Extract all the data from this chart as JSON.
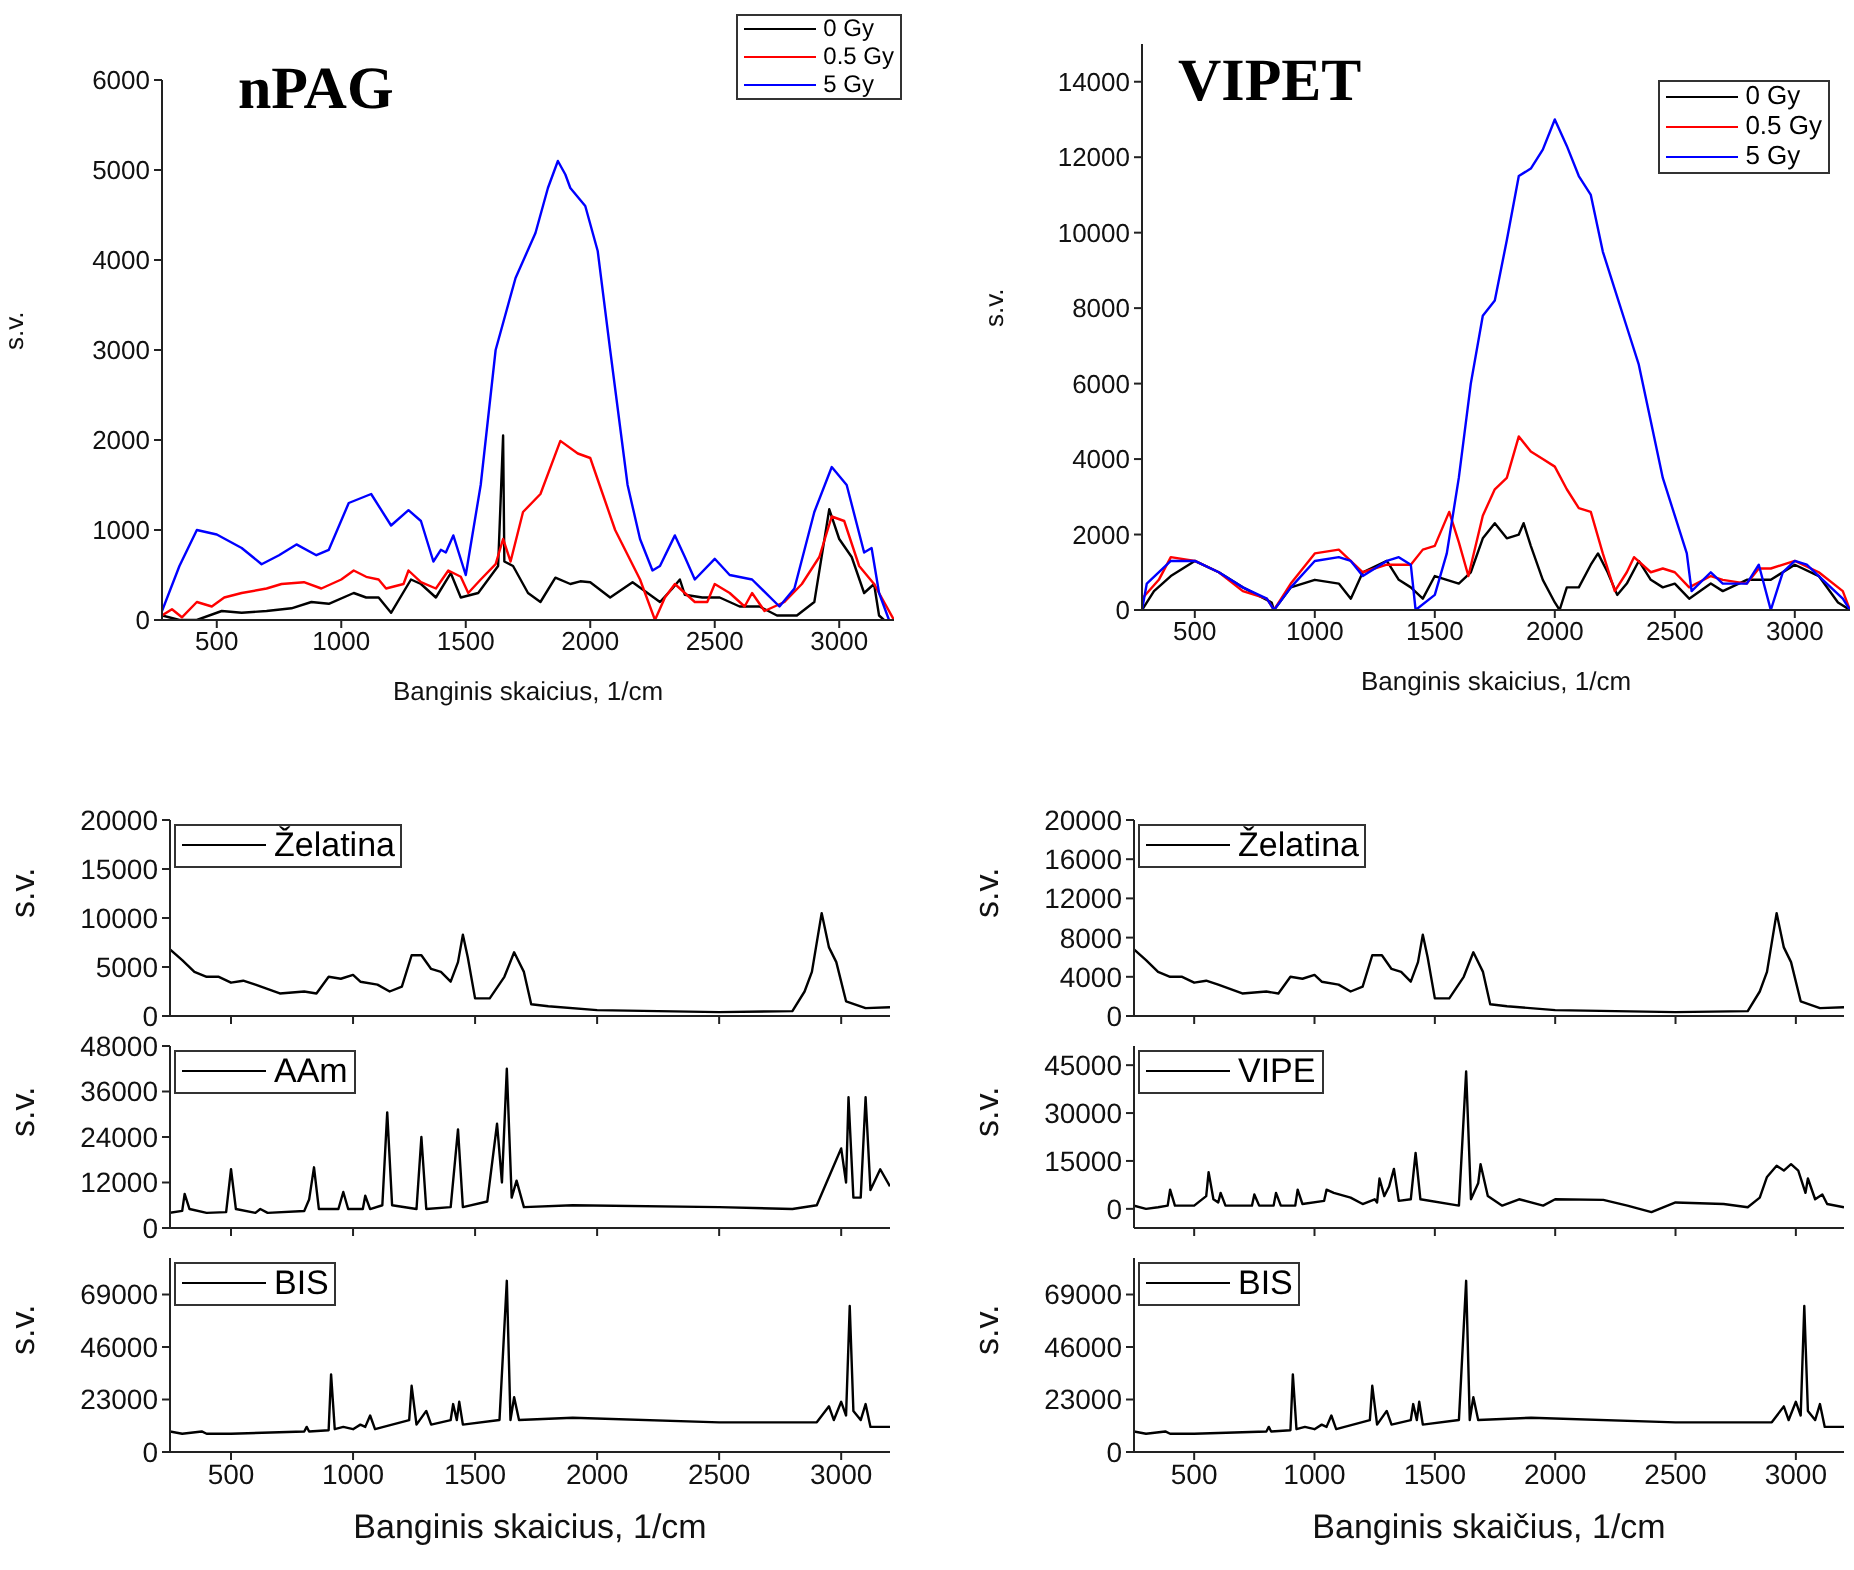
{
  "chart_data": [
    {
      "type": "line",
      "title": "nPAG",
      "xlabel": "Banginis skaicius, 1/cm",
      "ylabel": "s.v.",
      "xlim": [
        280,
        3220
      ],
      "xticks": [
        500,
        1000,
        1500,
        2000,
        2500,
        3000
      ],
      "ylim": [
        0,
        6000
      ],
      "yticks": [
        0,
        1000,
        2000,
        3000,
        4000,
        5000,
        6000
      ],
      "legend": "top right",
      "series": [
        {
          "name": "0 Gy",
          "color": "#000000",
          "x": [
            280,
            350,
            420,
            520,
            600,
            700,
            800,
            880,
            950,
            1050,
            1100,
            1150,
            1200,
            1280,
            1320,
            1380,
            1440,
            1480,
            1550,
            1630,
            1650,
            1655,
            1690,
            1750,
            1800,
            1860,
            1920,
            1960,
            2000,
            2080,
            2170,
            2230,
            2280,
            2330,
            2360,
            2380,
            2450,
            2520,
            2600,
            2680,
            2750,
            2830,
            2900,
            2960,
            3000,
            3050,
            3100,
            3140,
            3160,
            3180
          ],
          "values": [
            50,
            0,
            0,
            100,
            80,
            100,
            130,
            200,
            180,
            300,
            250,
            250,
            80,
            450,
            400,
            250,
            520,
            250,
            300,
            600,
            2050,
            650,
            600,
            300,
            200,
            470,
            400,
            430,
            420,
            250,
            420,
            300,
            200,
            350,
            450,
            280,
            250,
            250,
            150,
            150,
            50,
            50,
            200,
            1230,
            900,
            700,
            300,
            400,
            50,
            0
          ]
        },
        {
          "name": "0.5 Gy",
          "color": "#ff0000",
          "x": [
            280,
            320,
            360,
            420,
            480,
            530,
            600,
            700,
            760,
            850,
            920,
            1000,
            1050,
            1100,
            1150,
            1180,
            1250,
            1270,
            1320,
            1380,
            1430,
            1480,
            1510,
            1560,
            1620,
            1650,
            1680,
            1730,
            1800,
            1880,
            1950,
            2000,
            2050,
            2100,
            2200,
            2260,
            2300,
            2340,
            2380,
            2420,
            2470,
            2500,
            2560,
            2620,
            2650,
            2700,
            2780,
            2850,
            2920,
            2970,
            3020,
            3080,
            3140,
            3180,
            3220
          ],
          "values": [
            50,
            120,
            30,
            200,
            150,
            250,
            300,
            350,
            400,
            420,
            350,
            450,
            550,
            480,
            450,
            350,
            400,
            550,
            420,
            350,
            550,
            480,
            300,
            450,
            620,
            900,
            650,
            1200,
            1400,
            1990,
            1850,
            1800,
            1400,
            1000,
            450,
            0,
            250,
            400,
            300,
            200,
            200,
            400,
            300,
            150,
            300,
            100,
            200,
            400,
            700,
            1150,
            1100,
            600,
            400,
            200,
            0
          ]
        },
        {
          "name": "5 Gy",
          "color": "#0000ff",
          "x": [
            280,
            350,
            420,
            500,
            600,
            680,
            750,
            820,
            900,
            950,
            1030,
            1120,
            1200,
            1270,
            1320,
            1370,
            1400,
            1420,
            1450,
            1500,
            1560,
            1620,
            1700,
            1780,
            1830,
            1870,
            1900,
            1920,
            1980,
            2030,
            2080,
            2150,
            2200,
            2250,
            2280,
            2340,
            2380,
            2420,
            2500,
            2560,
            2650,
            2760,
            2820,
            2900,
            2970,
            3030,
            3100,
            3130,
            3160,
            3200
          ],
          "values": [
            100,
            600,
            1000,
            950,
            800,
            620,
            720,
            840,
            720,
            780,
            1300,
            1400,
            1050,
            1220,
            1100,
            650,
            780,
            750,
            940,
            500,
            1500,
            3000,
            3800,
            4300,
            4800,
            5100,
            4950,
            4800,
            4600,
            4100,
            3000,
            1500,
            900,
            550,
            600,
            940,
            700,
            450,
            680,
            500,
            450,
            150,
            350,
            1200,
            1700,
            1500,
            750,
            800,
            300,
            0
          ]
        }
      ]
    },
    {
      "type": "line",
      "title": "VIPET",
      "xlabel": "Banginis skaicius, 1/cm",
      "ylabel": "s.v.",
      "xlim": [
        280,
        3230
      ],
      "xticks": [
        500,
        1000,
        1500,
        2000,
        2500,
        3000
      ],
      "ylim": [
        0,
        15000
      ],
      "yticks": [
        0,
        2000,
        4000,
        6000,
        8000,
        10000,
        12000,
        14000
      ],
      "legend": "top right",
      "series": [
        {
          "name": "0 Gy",
          "color": "#000000",
          "x": [
            280,
            330,
            400,
            500,
            600,
            700,
            820,
            830,
            900,
            1000,
            1100,
            1150,
            1200,
            1300,
            1350,
            1400,
            1450,
            1500,
            1550,
            1600,
            1650,
            1700,
            1750,
            1800,
            1850,
            1870,
            1900,
            1950,
            2000,
            2020,
            2050,
            2100,
            2150,
            2180,
            2220,
            2260,
            2300,
            2350,
            2400,
            2450,
            2500,
            2560,
            2650,
            2700,
            2800,
            2900,
            3000,
            3100,
            3180,
            3230
          ],
          "values": [
            0,
            500,
            900,
            1300,
            1000,
            600,
            200,
            0,
            600,
            800,
            700,
            300,
            1000,
            1300,
            800,
            600,
            300,
            900,
            800,
            700,
            1000,
            1900,
            2300,
            1900,
            2000,
            2300,
            1700,
            800,
            200,
            0,
            600,
            600,
            1200,
            1500,
            1000,
            400,
            700,
            1300,
            800,
            600,
            700,
            300,
            700,
            500,
            800,
            800,
            1200,
            900,
            200,
            0
          ]
        },
        {
          "name": "0.5 Gy",
          "color": "#ff0000",
          "x": [
            280,
            350,
            400,
            500,
            600,
            700,
            800,
            830,
            900,
            1000,
            1100,
            1200,
            1300,
            1400,
            1450,
            1500,
            1560,
            1600,
            1640,
            1700,
            1750,
            1800,
            1850,
            1900,
            1950,
            2000,
            2050,
            2100,
            2150,
            2200,
            2250,
            2300,
            2330,
            2400,
            2450,
            2500,
            2560,
            2650,
            2700,
            2800,
            2850,
            2900,
            3000,
            3100,
            3200,
            3230
          ],
          "values": [
            300,
            800,
            1400,
            1300,
            1000,
            500,
            300,
            0,
            700,
            1500,
            1600,
            1000,
            1200,
            1200,
            1600,
            1700,
            2600,
            1800,
            900,
            2500,
            3200,
            3500,
            4600,
            4200,
            4000,
            3800,
            3200,
            2700,
            2600,
            1500,
            500,
            1000,
            1400,
            1000,
            1100,
            1000,
            600,
            900,
            800,
            700,
            1100,
            1100,
            1300,
            1000,
            500,
            0
          ]
        },
        {
          "name": "5 Gy",
          "color": "#0000ff",
          "x": [
            280,
            300,
            400,
            500,
            600,
            700,
            800,
            830,
            900,
            1000,
            1100,
            1150,
            1200,
            1300,
            1350,
            1400,
            1420,
            1500,
            1550,
            1600,
            1650,
            1700,
            1750,
            1800,
            1850,
            1900,
            1950,
            2000,
            2050,
            2100,
            2150,
            2200,
            2250,
            2300,
            2350,
            2400,
            2450,
            2500,
            2550,
            2570,
            2650,
            2700,
            2800,
            2850,
            2900,
            2950,
            3000,
            3050,
            3100,
            3150,
            3200,
            3230
          ],
          "values": [
            0,
            700,
            1300,
            1300,
            1000,
            600,
            300,
            0,
            600,
            1300,
            1400,
            1300,
            900,
            1300,
            1400,
            1200,
            0,
            400,
            1500,
            3500,
            6000,
            7800,
            8200,
            9800,
            11500,
            11700,
            12200,
            13000,
            12300,
            11500,
            11000,
            9500,
            8500,
            7500,
            6500,
            5000,
            3500,
            2500,
            1500,
            500,
            1000,
            700,
            700,
            1200,
            0,
            1000,
            1300,
            1200,
            900,
            600,
            300,
            0
          ]
        }
      ]
    },
    {
      "type": "line",
      "ylabel": "s.v.",
      "xlim": [
        250,
        3200
      ],
      "xticks": [
        500,
        1000,
        1500,
        2000,
        2500,
        3000
      ],
      "ylim": [
        0,
        20000
      ],
      "yticks": [
        0,
        5000,
        10000,
        15000,
        20000
      ],
      "legend": "top left",
      "tick_labels": "y",
      "series": [
        {
          "name": "Želatina",
          "color": "#000000",
          "x": [
            250,
            300,
            350,
            400,
            450,
            500,
            550,
            600,
            700,
            800,
            850,
            900,
            950,
            1000,
            1030,
            1100,
            1150,
            1200,
            1240,
            1280,
            1320,
            1360,
            1400,
            1430,
            1450,
            1470,
            1500,
            1560,
            1620,
            1660,
            1700,
            1730,
            1800,
            2000,
            2500,
            2800,
            2850,
            2880,
            2920,
            2950,
            2980,
            3020,
            3100,
            3200
          ],
          "values": [
            6800,
            5700,
            4500,
            4000,
            4000,
            3400,
            3600,
            3200,
            2300,
            2500,
            2300,
            4000,
            3800,
            4200,
            3500,
            3200,
            2500,
            3000,
            6200,
            6200,
            4800,
            4500,
            3500,
            5500,
            8300,
            6000,
            1800,
            1800,
            4000,
            6500,
            4500,
            1200,
            1000,
            600,
            400,
            500,
            2500,
            4500,
            10500,
            7000,
            5500,
            1500,
            800,
            900
          ]
        }
      ]
    },
    {
      "type": "line",
      "ylabel": "s.v.",
      "xlim": [
        250,
        3200
      ],
      "xticks": [
        500,
        1000,
        1500,
        2000,
        2500,
        3000
      ],
      "ylim": [
        0,
        48000
      ],
      "yticks": [
        0,
        12000,
        24000,
        36000,
        48000
      ],
      "legend": "top left",
      "tick_labels": "y",
      "series": [
        {
          "name": "AAm",
          "color": "#000000",
          "x": [
            250,
            300,
            310,
            330,
            400,
            480,
            500,
            520,
            600,
            620,
            650,
            800,
            820,
            840,
            860,
            940,
            960,
            980,
            1040,
            1050,
            1070,
            1120,
            1140,
            1160,
            1260,
            1280,
            1300,
            1400,
            1430,
            1450,
            1550,
            1590,
            1610,
            1630,
            1650,
            1670,
            1700,
            1900,
            2500,
            2800,
            2900,
            2980,
            3000,
            3020,
            3030,
            3050,
            3080,
            3100,
            3120,
            3160,
            3200
          ],
          "values": [
            4000,
            4500,
            9000,
            5000,
            4000,
            4200,
            15500,
            5000,
            4000,
            5000,
            4000,
            4500,
            7500,
            16000,
            5000,
            5000,
            9500,
            5000,
            5000,
            8500,
            5000,
            6000,
            30500,
            6000,
            5000,
            24000,
            5000,
            5500,
            26000,
            5500,
            7000,
            27500,
            12000,
            42000,
            8000,
            12500,
            5500,
            6000,
            5500,
            5000,
            6000,
            18000,
            21000,
            12000,
            34500,
            8000,
            8000,
            34500,
            10000,
            15500,
            11000
          ]
        }
      ]
    },
    {
      "type": "line",
      "xlabel": "Banginis skaicius, 1/cm",
      "ylabel": "s.v.",
      "xlim": [
        250,
        3200
      ],
      "xticks": [
        500,
        1000,
        1500,
        2000,
        2500,
        3000
      ],
      "ylim": [
        0,
        85000
      ],
      "yticks": [
        0,
        23000,
        46000,
        69000
      ],
      "legend": "top left",
      "series": [
        {
          "name": "BIS",
          "color": "#000000",
          "x": [
            250,
            300,
            380,
            400,
            500,
            800,
            810,
            820,
            900,
            910,
            925,
            960,
            1000,
            1030,
            1050,
            1070,
            1090,
            1230,
            1240,
            1260,
            1300,
            1320,
            1400,
            1410,
            1425,
            1435,
            1450,
            1600,
            1630,
            1645,
            1660,
            1680,
            1900,
            2500,
            2900,
            2950,
            2970,
            3000,
            3020,
            3035,
            3050,
            3080,
            3100,
            3120,
            3200
          ],
          "values": [
            9000,
            8000,
            9000,
            8000,
            8000,
            9000,
            11000,
            9000,
            9500,
            34000,
            10000,
            11000,
            10000,
            12000,
            11000,
            16000,
            10000,
            14000,
            29000,
            12000,
            18000,
            12000,
            14000,
            21000,
            14000,
            22000,
            12000,
            14000,
            75000,
            14000,
            24000,
            14000,
            15000,
            13000,
            13000,
            20000,
            14000,
            22000,
            16000,
            64000,
            18000,
            14000,
            21000,
            11000,
            11000
          ]
        }
      ]
    },
    {
      "type": "line",
      "ylabel": "s.v.",
      "xlim": [
        250,
        3200
      ],
      "xticks": [
        500,
        1000,
        1500,
        2000,
        2500,
        3000
      ],
      "ylim": [
        0,
        20000
      ],
      "yticks": [
        0,
        4000,
        8000,
        12000,
        16000,
        20000
      ],
      "legend": "top left",
      "tick_labels": "y",
      "series": [
        {
          "name": "Želatina",
          "color": "#000000",
          "x": [
            250,
            300,
            350,
            400,
            450,
            500,
            550,
            600,
            700,
            800,
            850,
            900,
            950,
            1000,
            1030,
            1100,
            1150,
            1200,
            1240,
            1280,
            1320,
            1360,
            1400,
            1430,
            1450,
            1470,
            1500,
            1560,
            1620,
            1660,
            1700,
            1730,
            1800,
            2000,
            2500,
            2800,
            2850,
            2880,
            2920,
            2950,
            2980,
            3020,
            3100,
            3200
          ],
          "values": [
            6800,
            5700,
            4500,
            4000,
            4000,
            3400,
            3600,
            3200,
            2300,
            2500,
            2300,
            4000,
            3800,
            4200,
            3500,
            3200,
            2500,
            3000,
            6200,
            6200,
            4800,
            4500,
            3500,
            5500,
            8300,
            6000,
            1800,
            1800,
            4000,
            6500,
            4500,
            1200,
            1000,
            600,
            400,
            500,
            2500,
            4500,
            10500,
            7000,
            5500,
            1500,
            800,
            900
          ]
        }
      ]
    },
    {
      "type": "line",
      "ylabel": "s.v.",
      "xlim": [
        250,
        3200
      ],
      "xticks": [
        500,
        1000,
        1500,
        2000,
        2500,
        3000
      ],
      "ylim": [
        -6000,
        51000
      ],
      "yticks": [
        0,
        15000,
        30000,
        45000
      ],
      "legend": "top left",
      "tick_labels": "y",
      "series": [
        {
          "name": "VIPE",
          "color": "#000000",
          "x": [
            250,
            300,
            350,
            390,
            400,
            420,
            500,
            550,
            560,
            580,
            600,
            610,
            630,
            740,
            750,
            770,
            830,
            840,
            860,
            920,
            930,
            950,
            1040,
            1050,
            1080,
            1150,
            1200,
            1250,
            1260,
            1270,
            1290,
            1310,
            1330,
            1350,
            1400,
            1420,
            1440,
            1600,
            1630,
            1650,
            1680,
            1690,
            1720,
            1780,
            1850,
            1950,
            2000,
            2200,
            2300,
            2400,
            2500,
            2700,
            2800,
            2850,
            2880,
            2920,
            2950,
            2980,
            3010,
            3040,
            3050,
            3080,
            3110,
            3130,
            3200
          ],
          "values": [
            1000,
            0,
            500,
            1000,
            6000,
            1000,
            1000,
            4000,
            11500,
            3000,
            2000,
            5000,
            1000,
            1000,
            4500,
            1000,
            1000,
            5000,
            1000,
            1000,
            6000,
            1500,
            2500,
            6000,
            5000,
            3500,
            1500,
            3000,
            2000,
            9500,
            4000,
            7000,
            12500,
            2500,
            3000,
            17500,
            3000,
            1000,
            43000,
            3000,
            8000,
            14000,
            4000,
            1000,
            3000,
            1000,
            3000,
            2800,
            1000,
            -1000,
            2000,
            1500,
            500,
            3500,
            10000,
            13500,
            12000,
            14000,
            12000,
            5000,
            9500,
            3000,
            4500,
            1500,
            500
          ]
        }
      ]
    },
    {
      "type": "line",
      "xlabel": "Banginis skaičius, 1/cm",
      "ylabel": "s.v.",
      "xlim": [
        250,
        3200
      ],
      "xticks": [
        500,
        1000,
        1500,
        2000,
        2500,
        3000
      ],
      "ylim": [
        0,
        85000
      ],
      "yticks": [
        0,
        23000,
        46000,
        69000
      ],
      "legend": "top left",
      "series": [
        {
          "name": "BIS",
          "color": "#000000",
          "x": [
            250,
            300,
            380,
            400,
            500,
            800,
            810,
            820,
            900,
            910,
            925,
            960,
            1000,
            1030,
            1050,
            1070,
            1090,
            1230,
            1240,
            1260,
            1300,
            1320,
            1400,
            1410,
            1425,
            1435,
            1450,
            1600,
            1630,
            1645,
            1660,
            1680,
            1900,
            2500,
            2900,
            2950,
            2970,
            3000,
            3020,
            3035,
            3050,
            3080,
            3100,
            3120,
            3200
          ],
          "values": [
            9000,
            8000,
            9000,
            8000,
            8000,
            9000,
            11000,
            9000,
            9500,
            34000,
            10000,
            11000,
            10000,
            12000,
            11000,
            16000,
            10000,
            14000,
            29000,
            12000,
            18000,
            12000,
            14000,
            21000,
            14000,
            22000,
            12000,
            14000,
            75000,
            14000,
            24000,
            14000,
            15000,
            13000,
            13000,
            20000,
            14000,
            22000,
            16000,
            64000,
            18000,
            14000,
            21000,
            11000,
            11000
          ]
        }
      ]
    }
  ]
}
